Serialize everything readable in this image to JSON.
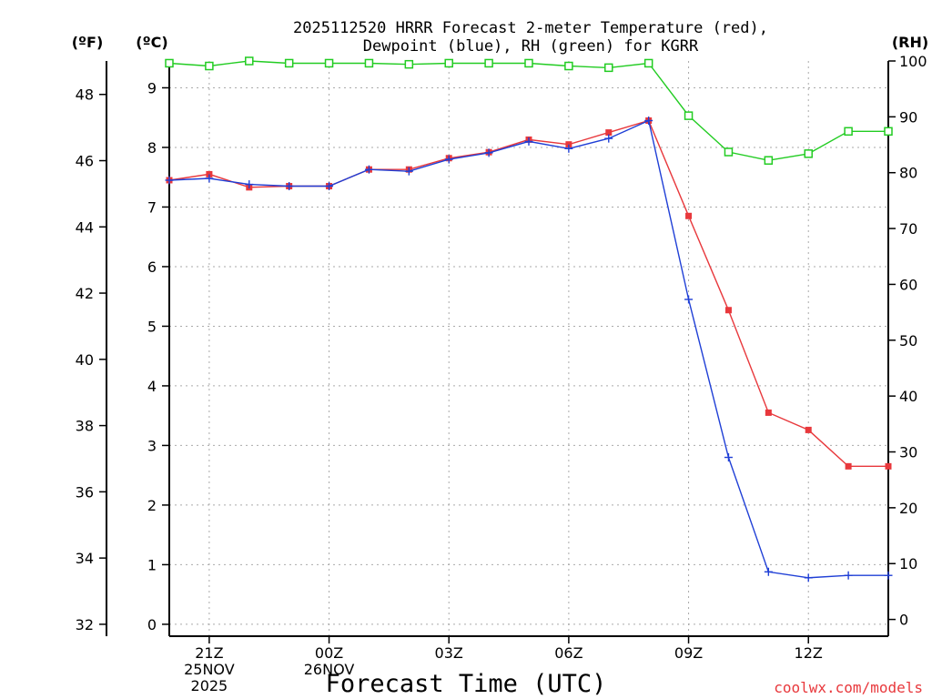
{
  "chart_data": {
    "type": "line",
    "title_lines": [
      "2025112520 HRRR Forecast 2-meter Temperature (red),",
      "Dewpoint (blue), RH (green) for KGRR"
    ],
    "unit_labels": {
      "fahrenheit": "(ºF)",
      "celsius": "(ºC)",
      "rh": "(RH)"
    },
    "xlabel": "Forecast Time (UTC)",
    "credit": "coolwx.com/models",
    "x_range": [
      -1,
      17
    ],
    "celsius_axis": {
      "min": -0.2,
      "max": 9.45,
      "ticks": [
        0,
        1,
        2,
        3,
        4,
        5,
        6,
        7,
        8,
        9
      ]
    },
    "fahrenheit_axis": {
      "ticks": [
        32,
        34,
        36,
        38,
        40,
        42,
        44,
        46,
        48
      ]
    },
    "rh_axis": {
      "min": -3,
      "max": 100,
      "ticks": [
        0,
        10,
        20,
        30,
        40,
        50,
        60,
        70,
        80,
        90,
        100
      ]
    },
    "x_ticks": [
      {
        "x": 0,
        "lines": [
          "21Z",
          "25NOV",
          "2025"
        ]
      },
      {
        "x": 3,
        "lines": [
          "00Z",
          "26NOV"
        ]
      },
      {
        "x": 6,
        "lines": [
          "03Z"
        ]
      },
      {
        "x": 9,
        "lines": [
          "06Z"
        ]
      },
      {
        "x": 12,
        "lines": [
          "09Z"
        ]
      },
      {
        "x": 15,
        "lines": [
          "12Z"
        ]
      }
    ],
    "x": [
      -1,
      0,
      1,
      2,
      3,
      4,
      5,
      6,
      7,
      8,
      9,
      10,
      11,
      12,
      13,
      14,
      15,
      16,
      17
    ],
    "series": [
      {
        "name": "Temperature",
        "axis": "celsius",
        "color": "#e8383c",
        "marker": "filled-square",
        "values": [
          7.45,
          7.55,
          7.33,
          7.35,
          7.35,
          7.63,
          7.63,
          7.82,
          7.92,
          8.13,
          8.05,
          8.25,
          8.45,
          6.85,
          5.27,
          3.55,
          3.26,
          2.65,
          2.65
        ]
      },
      {
        "name": "Dewpoint",
        "axis": "celsius",
        "color": "#1f3fd6",
        "marker": "plus",
        "values": [
          7.45,
          7.48,
          7.38,
          7.35,
          7.35,
          7.63,
          7.6,
          7.8,
          7.91,
          8.1,
          7.98,
          8.15,
          8.45,
          5.45,
          2.8,
          0.88,
          0.78,
          0.82,
          0.82
        ]
      },
      {
        "name": "RH",
        "axis": "rh",
        "color": "#22cc22",
        "marker": "open-square",
        "values": [
          99.6,
          99.1,
          100,
          99.6,
          99.6,
          99.6,
          99.4,
          99.6,
          99.6,
          99.6,
          99.1,
          98.8,
          99.6,
          90.2,
          83.7,
          82.2,
          83.4,
          87.4,
          87.4
        ]
      }
    ]
  }
}
